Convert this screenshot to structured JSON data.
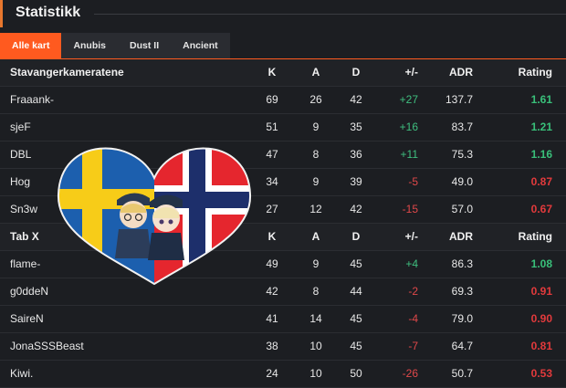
{
  "header": {
    "title": "Statistikk"
  },
  "tabs": [
    "Alle kart",
    "Anubis",
    "Dust II",
    "Ancient"
  ],
  "columns": {
    "k": "K",
    "a": "A",
    "d": "D",
    "pm": "+/-",
    "adr": "ADR",
    "rating": "Rating"
  },
  "teams": [
    {
      "name": "Stavangerkameratene",
      "players": [
        {
          "name": "Fraaank-",
          "k": "69",
          "a": "26",
          "d": "42",
          "pm": "+27",
          "adr": "137.7",
          "rating": "1.61"
        },
        {
          "name": "sjeF",
          "k": "51",
          "a": "9",
          "d": "35",
          "pm": "+16",
          "adr": "83.7",
          "rating": "1.21"
        },
        {
          "name": "DBL",
          "k": "47",
          "a": "8",
          "d": "36",
          "pm": "+11",
          "adr": "75.3",
          "rating": "1.16"
        },
        {
          "name": "Hog",
          "k": "34",
          "a": "9",
          "d": "39",
          "pm": "-5",
          "adr": "49.0",
          "rating": "0.87"
        },
        {
          "name": "Sn3w",
          "k": "27",
          "a": "12",
          "d": "42",
          "pm": "-15",
          "adr": "57.0",
          "rating": "0.67"
        }
      ]
    },
    {
      "name": "Tab X",
      "players": [
        {
          "name": "flame-",
          "k": "49",
          "a": "9",
          "d": "45",
          "pm": "+4",
          "adr": "86.3",
          "rating": "1.08"
        },
        {
          "name": "g0ddeN",
          "k": "42",
          "a": "8",
          "d": "44",
          "pm": "-2",
          "adr": "69.3",
          "rating": "0.91"
        },
        {
          "name": "SaireN",
          "k": "41",
          "a": "14",
          "d": "45",
          "pm": "-4",
          "adr": "79.0",
          "rating": "0.90"
        },
        {
          "name": "JonaSSSBeast",
          "k": "38",
          "a": "10",
          "d": "45",
          "pm": "-7",
          "adr": "64.7",
          "rating": "0.81"
        },
        {
          "name": "Kiwi.",
          "k": "24",
          "a": "10",
          "d": "50",
          "pm": "-26",
          "adr": "50.7",
          "rating": "0.53"
        }
      ]
    }
  ],
  "colors": {
    "accent": "#ff5a1f",
    "positive": "#3fbf7f",
    "negative": "#e0484a"
  },
  "overlay": {
    "image": "heart-flags-sweden-norway-with-chibi-characters"
  }
}
